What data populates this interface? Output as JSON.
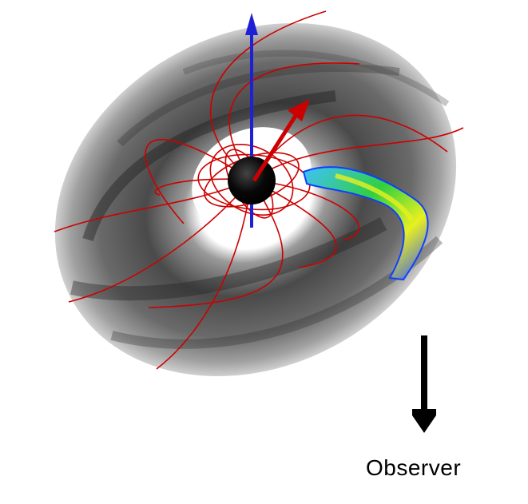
{
  "labels": {
    "observer": "Observer"
  },
  "colors": {
    "disk_dark": "#2a2a2a",
    "disk_mid": "#7a7a7a",
    "disk_light": "#c8c8c8",
    "field_lines": "#cc0000",
    "rotation_axis": "#1f1fd6",
    "magnetic_axis": "#cc0000",
    "star": "#000000",
    "accretion_stream_hot": "#e8f020",
    "accretion_stream_mid": "#20c040",
    "accretion_stream_cool": "#2060ff",
    "observer_arrow": "#000000"
  },
  "icons": {
    "star": "black-sphere",
    "rotation_axis": "blue-arrow",
    "magnetic_axis": "red-arrow",
    "observer": "black-down-arrow"
  }
}
